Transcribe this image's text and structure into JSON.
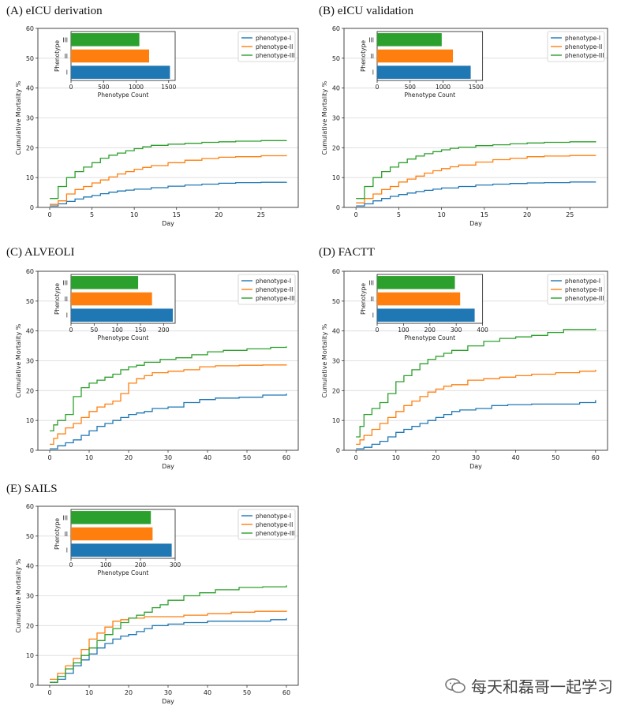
{
  "colors": {
    "phenotype_I": "#1f77b4",
    "phenotype_II": "#ff7f0e",
    "phenotype_III": "#2ca02c"
  },
  "watermark": {
    "text": "每天和磊哥一起学习"
  },
  "chart_data": [
    {
      "id": "A",
      "title": "(A) eICU derivation",
      "type": "line",
      "xlabel": "Day",
      "ylabel": "Cumulative Mortality %",
      "xlim": [
        -1.4,
        29.4
      ],
      "ylim": [
        0,
        60
      ],
      "xticks": [
        0,
        5,
        10,
        15,
        20,
        25
      ],
      "yticks": [
        0,
        10,
        20,
        30,
        40,
        50,
        60
      ],
      "legend": {
        "placement": "top-right",
        "entries": [
          "phenotype-I",
          "phenotype-II",
          "phenotype-III"
        ]
      },
      "series": [
        {
          "name": "phenotype-I",
          "x": [
            0,
            1,
            2,
            3,
            4,
            5,
            6,
            7,
            8,
            9,
            10,
            12,
            14,
            16,
            18,
            20,
            22,
            25,
            28
          ],
          "y": [
            0.5,
            1.2,
            2,
            2.8,
            3.5,
            4,
            4.6,
            5.1,
            5.5,
            5.8,
            6.1,
            6.6,
            7.1,
            7.5,
            7.8,
            8.1,
            8.3,
            8.4,
            8.5
          ]
        },
        {
          "name": "phenotype-II",
          "x": [
            0,
            1,
            2,
            3,
            4,
            5,
            6,
            7,
            8,
            9,
            10,
            11,
            12,
            14,
            16,
            18,
            20,
            22,
            25,
            28
          ],
          "y": [
            1,
            2.2,
            4.5,
            6,
            7,
            8.2,
            9.2,
            10.2,
            11.2,
            12,
            12.8,
            13.4,
            14,
            15,
            15.8,
            16.4,
            16.8,
            17,
            17.3,
            17.5
          ]
        },
        {
          "name": "phenotype-III",
          "x": [
            0,
            1,
            2,
            3,
            4,
            5,
            6,
            7,
            8,
            9,
            10,
            11,
            12,
            14,
            16,
            18,
            20,
            22,
            25,
            28
          ],
          "y": [
            3,
            7,
            10,
            12,
            13.5,
            15,
            16.5,
            17.5,
            18.2,
            19,
            19.7,
            20.3,
            20.8,
            21.2,
            21.5,
            21.8,
            22,
            22.2,
            22.4,
            22.5
          ]
        }
      ],
      "inset": {
        "type": "bar",
        "orientation": "horizontal",
        "xlabel": "Phenotype Count",
        "ylabel": "Phenotype",
        "xlim": [
          0,
          1600
        ],
        "xticks": [
          0,
          500,
          1000,
          1500
        ],
        "categories": [
          "I",
          "II",
          "III"
        ],
        "values": [
          1520,
          1200,
          1050
        ]
      }
    },
    {
      "id": "B",
      "title": "(B) eICU validation",
      "type": "line",
      "xlabel": "Day",
      "ylabel": "Cumulative Mortality %",
      "xlim": [
        -1.4,
        29.4
      ],
      "ylim": [
        0,
        60
      ],
      "xticks": [
        0,
        5,
        10,
        15,
        20,
        25
      ],
      "yticks": [
        0,
        10,
        20,
        30,
        40,
        50,
        60
      ],
      "legend": {
        "placement": "top-right",
        "entries": [
          "phenotype-I",
          "phenotype-II",
          "phenotype-III"
        ]
      },
      "series": [
        {
          "name": "phenotype-I",
          "x": [
            0,
            1,
            2,
            3,
            4,
            5,
            6,
            7,
            8,
            9,
            10,
            12,
            14,
            16,
            18,
            20,
            22,
            25,
            28
          ],
          "y": [
            0.5,
            1.2,
            2.2,
            3,
            3.7,
            4.3,
            4.8,
            5.3,
            5.7,
            6.1,
            6.5,
            7,
            7.5,
            7.8,
            8,
            8.2,
            8.3,
            8.5,
            8.6
          ]
        },
        {
          "name": "phenotype-II",
          "x": [
            0,
            1,
            2,
            3,
            4,
            5,
            6,
            7,
            8,
            9,
            10,
            11,
            12,
            14,
            16,
            18,
            20,
            22,
            25,
            28
          ],
          "y": [
            1.5,
            3,
            4.5,
            6,
            7,
            8.5,
            9.5,
            10.5,
            11.5,
            12.3,
            13,
            13.6,
            14.2,
            15.2,
            16,
            16.5,
            17,
            17.2,
            17.4,
            17.5
          ]
        },
        {
          "name": "phenotype-III",
          "x": [
            0,
            1,
            2,
            3,
            4,
            5,
            6,
            7,
            8,
            9,
            10,
            11,
            12,
            14,
            16,
            18,
            20,
            22,
            25,
            28
          ],
          "y": [
            3,
            7,
            10,
            12,
            13.5,
            15,
            16.2,
            17.2,
            18,
            18.7,
            19.3,
            19.8,
            20.2,
            20.7,
            21,
            21.3,
            21.6,
            21.8,
            22,
            22.2
          ]
        }
      ],
      "inset": {
        "type": "bar",
        "orientation": "horizontal",
        "xlabel": "Phenotype Count",
        "ylabel": "Phenotype",
        "xlim": [
          0,
          1600
        ],
        "xticks": [
          0,
          500,
          1000,
          1500
        ],
        "categories": [
          "I",
          "II",
          "III"
        ],
        "values": [
          1420,
          1150,
          980
        ]
      }
    },
    {
      "id": "C",
      "title": "(C) ALVEOLI",
      "type": "line",
      "xlabel": "Day",
      "ylabel": "Cumulative Mortality %",
      "xlim": [
        -3,
        63
      ],
      "ylim": [
        0,
        60
      ],
      "xticks": [
        0,
        10,
        20,
        30,
        40,
        50,
        60
      ],
      "yticks": [
        0,
        10,
        20,
        30,
        40,
        50,
        60
      ],
      "legend": {
        "placement": "top-right",
        "entries": [
          "phenotype-I",
          "phenotype-II",
          "phenotype-III"
        ]
      },
      "series": [
        {
          "name": "phenotype-I",
          "x": [
            0,
            2,
            4,
            6,
            8,
            10,
            12,
            14,
            16,
            18,
            20,
            22,
            24,
            26,
            30,
            34,
            38,
            42,
            48,
            54,
            60
          ],
          "y": [
            0.5,
            1.5,
            2.5,
            3.5,
            5,
            6.5,
            8,
            9,
            10,
            11,
            12,
            12.5,
            13,
            14,
            14.5,
            16,
            17,
            17.5,
            17.8,
            18.5,
            19
          ]
        },
        {
          "name": "phenotype-II",
          "x": [
            0,
            1,
            2,
            4,
            6,
            8,
            10,
            12,
            14,
            16,
            18,
            20,
            22,
            24,
            26,
            30,
            34,
            38,
            42,
            48,
            54,
            60
          ],
          "y": [
            2,
            4,
            5.5,
            7.5,
            9,
            11,
            13,
            14.5,
            15.5,
            16.5,
            19,
            22.5,
            24,
            25,
            26,
            26.5,
            27,
            28,
            28.3,
            28.5,
            28.6,
            28.7
          ]
        },
        {
          "name": "phenotype-III",
          "x": [
            0,
            1,
            2,
            4,
            6,
            8,
            10,
            12,
            14,
            16,
            18,
            20,
            22,
            24,
            28,
            32,
            36,
            40,
            44,
            50,
            56,
            60
          ],
          "y": [
            6.5,
            8.5,
            10,
            12,
            18,
            21,
            22.5,
            23.5,
            24.5,
            25.5,
            27,
            28,
            28.5,
            29.5,
            30.5,
            31,
            32,
            33,
            33.5,
            34,
            34.5,
            34.8
          ]
        }
      ],
      "inset": {
        "type": "bar",
        "orientation": "horizontal",
        "xlabel": "Phenotype Count",
        "ylabel": "Phenotype",
        "xlim": [
          0,
          225
        ],
        "xticks": [
          0,
          50,
          100,
          150,
          200
        ],
        "categories": [
          "I",
          "II",
          "III"
        ],
        "values": [
          220,
          175,
          145
        ]
      }
    },
    {
      "id": "D",
      "title": "(D) FACTT",
      "type": "line",
      "xlabel": "Day",
      "ylabel": "Cumulative Mortality %",
      "xlim": [
        -3,
        63
      ],
      "ylim": [
        0,
        60
      ],
      "xticks": [
        0,
        10,
        20,
        30,
        40,
        50,
        60
      ],
      "yticks": [
        0,
        10,
        20,
        30,
        40,
        50,
        60
      ],
      "legend": {
        "placement": "top-right",
        "entries": [
          "phenotype-I",
          "phenotype-II",
          "phenotype-III"
        ]
      },
      "series": [
        {
          "name": "phenotype-I",
          "x": [
            0,
            2,
            4,
            6,
            8,
            10,
            12,
            14,
            16,
            18,
            20,
            22,
            24,
            26,
            30,
            34,
            38,
            44,
            50,
            56,
            60
          ],
          "y": [
            0.5,
            1,
            2,
            3,
            4.5,
            6,
            7,
            8,
            9,
            10,
            11,
            12,
            13,
            13.5,
            14,
            15,
            15.3,
            15.5,
            15.5,
            16,
            16.8
          ]
        },
        {
          "name": "phenotype-II",
          "x": [
            0,
            1,
            2,
            4,
            6,
            8,
            10,
            12,
            14,
            16,
            18,
            20,
            22,
            24,
            28,
            32,
            36,
            40,
            44,
            50,
            56,
            60
          ],
          "y": [
            2,
            3.5,
            5,
            7,
            9,
            11,
            13,
            15,
            16.5,
            18,
            19.5,
            20.5,
            21.5,
            22,
            23.5,
            24,
            24.5,
            25,
            25.5,
            26,
            26.5,
            27
          ]
        },
        {
          "name": "phenotype-III",
          "x": [
            0,
            1,
            2,
            4,
            6,
            8,
            10,
            12,
            14,
            16,
            18,
            20,
            22,
            24,
            28,
            32,
            36,
            40,
            44,
            48,
            52,
            60
          ],
          "y": [
            4.5,
            8,
            12,
            14,
            16,
            19,
            23,
            25,
            27,
            29,
            30.5,
            31.5,
            32.5,
            33.5,
            35,
            36.5,
            37.5,
            38,
            38.5,
            39.5,
            40.5,
            40.8
          ]
        }
      ],
      "inset": {
        "type": "bar",
        "orientation": "horizontal",
        "xlabel": "Phenotype Count",
        "ylabel": "Phenotype",
        "xlim": [
          0,
          400
        ],
        "xticks": [
          0,
          100,
          200,
          300,
          400
        ],
        "categories": [
          "I",
          "II",
          "III"
        ],
        "values": [
          370,
          315,
          295
        ]
      }
    },
    {
      "id": "E",
      "title": "(E) SAILS",
      "type": "line",
      "xlabel": "Day",
      "ylabel": "Cumulative Mortality %",
      "xlim": [
        -3,
        63
      ],
      "ylim": [
        0,
        60
      ],
      "xticks": [
        0,
        10,
        20,
        30,
        40,
        50,
        60
      ],
      "yticks": [
        0,
        10,
        20,
        30,
        40,
        50,
        60
      ],
      "legend": {
        "placement": "top-right",
        "entries": [
          "phenotype-I",
          "phenotype-II",
          "phenotype-III"
        ]
      },
      "series": [
        {
          "name": "phenotype-I",
          "x": [
            0,
            2,
            4,
            6,
            8,
            10,
            12,
            14,
            16,
            18,
            20,
            22,
            24,
            26,
            30,
            34,
            40,
            46,
            52,
            56,
            60
          ],
          "y": [
            1,
            2,
            4,
            6.5,
            8.5,
            10.5,
            12.5,
            14,
            15.5,
            16.5,
            17,
            18,
            19,
            20,
            20.5,
            21,
            21.5,
            21.5,
            21.5,
            22,
            22.5
          ]
        },
        {
          "name": "phenotype-II",
          "x": [
            0,
            2,
            4,
            6,
            8,
            10,
            12,
            14,
            16,
            18,
            20,
            24,
            28,
            34,
            40,
            46,
            52,
            60
          ],
          "y": [
            2,
            4,
            6.5,
            9,
            12,
            15.5,
            17.5,
            19.5,
            21.5,
            22,
            22.5,
            23,
            23,
            23.5,
            24,
            24.5,
            24.8,
            25
          ]
        },
        {
          "name": "phenotype-III",
          "x": [
            0,
            2,
            4,
            6,
            8,
            10,
            12,
            14,
            16,
            18,
            20,
            22,
            24,
            26,
            28,
            30,
            34,
            38,
            42,
            48,
            54,
            60
          ],
          "y": [
            1,
            3,
            5.5,
            7.5,
            10,
            12.5,
            15,
            17,
            19,
            21,
            22.5,
            23.5,
            24.5,
            26,
            27,
            28.5,
            30,
            31,
            32,
            32.8,
            33,
            33.5
          ]
        }
      ],
      "inset": {
        "type": "bar",
        "orientation": "horizontal",
        "xlabel": "Phenotype Count",
        "ylabel": "Phenotype",
        "xlim": [
          0,
          300
        ],
        "xticks": [
          0,
          100,
          200,
          300
        ],
        "categories": [
          "I",
          "II",
          "III"
        ],
        "values": [
          290,
          235,
          230
        ]
      }
    }
  ]
}
